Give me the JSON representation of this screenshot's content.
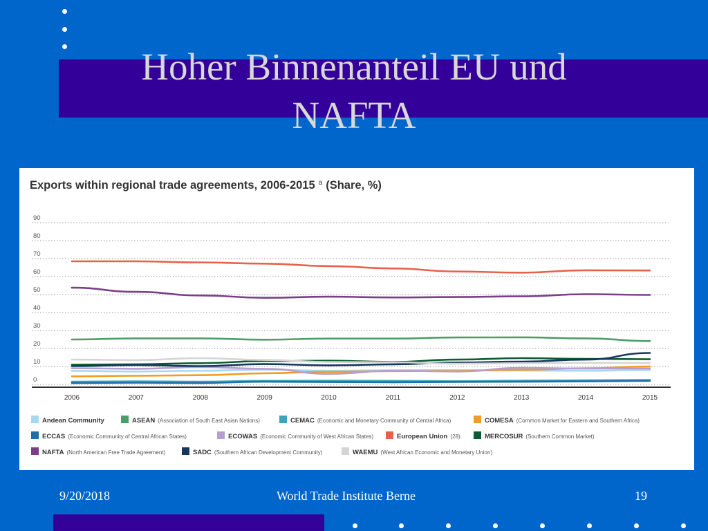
{
  "slide": {
    "title_line1": "Hoher Binnenanteil EU und",
    "title_line2": "NAFTA",
    "footer_date": "9/20/2018",
    "footer_center": "World Trade Institute Berne",
    "footer_page": "19"
  },
  "colors": {
    "background": "#0066CC",
    "band": "#330099",
    "title_text": "#D8D8D8"
  },
  "chart_data": {
    "type": "line",
    "title": "Exports within regional trade agreements, 2006-2015",
    "title_sup": "a",
    "title_suffix": "(Share, %)",
    "ylim": [
      0,
      90
    ],
    "y_ticks": [
      0,
      10,
      20,
      30,
      40,
      50,
      60,
      70,
      80,
      90
    ],
    "grid": true,
    "legend_position": "bottom",
    "categories": [
      "2006",
      "2007",
      "2008",
      "2009",
      "2010",
      "2011",
      "2012",
      "2013",
      "2014",
      "2015"
    ],
    "series": [
      {
        "name": "Andean Community",
        "desc": "",
        "color": "#A8D8F0",
        "values": [
          7.5,
          7.2,
          7.6,
          8.2,
          7.6,
          7.9,
          8.0,
          7.7,
          7.6,
          8.0
        ]
      },
      {
        "name": "ASEAN",
        "desc": "(Association of South East Asian Nations)",
        "color": "#4C9E68",
        "values": [
          25.0,
          25.6,
          25.6,
          24.9,
          25.5,
          25.5,
          26.1,
          26.2,
          25.6,
          24.1
        ]
      },
      {
        "name": "CEMAC",
        "desc": "(Economic and Monetary Community of Central Africa)",
        "color": "#3AA6B9",
        "values": [
          1.5,
          1.7,
          1.5,
          2.0,
          2.1,
          2.0,
          1.8,
          2.1,
          2.3,
          2.5
        ]
      },
      {
        "name": "COMESA",
        "desc": "(Common Market for Eastern and Southern Africa)",
        "color": "#F39C1F",
        "values": [
          4.5,
          4.8,
          5.1,
          6.2,
          7.0,
          7.4,
          7.5,
          8.2,
          9.0,
          10.0
        ]
      },
      {
        "name": "ECCAS",
        "desc": "(Economic Community of Central African States)",
        "color": "#1F6FA8",
        "values": [
          0.8,
          1.0,
          0.8,
          1.5,
          1.3,
          1.2,
          1.4,
          1.5,
          1.7,
          2.0
        ]
      },
      {
        "name": "ECOWAS",
        "desc": "(Economic Community of West African States)",
        "color": "#B79ED0",
        "values": [
          9.0,
          8.7,
          9.6,
          8.7,
          5.9,
          7.6,
          7.2,
          9.2,
          8.8,
          8.9
        ]
      },
      {
        "name": "European Union",
        "desc": "(28)",
        "color": "#E8624A",
        "values": [
          68.5,
          68.5,
          67.9,
          67.2,
          65.8,
          64.5,
          62.8,
          62.2,
          63.5,
          63.4
        ]
      },
      {
        "name": "MERCOSUR",
        "desc": "(Southern Common Market)",
        "color": "#0E5C33",
        "values": [
          11.0,
          11.2,
          11.8,
          13.0,
          13.2,
          12.5,
          13.8,
          14.6,
          14.2,
          14.0
        ]
      },
      {
        "name": "NAFTA",
        "desc": "(North American Free Trade Agreement)",
        "color": "#7B3F88",
        "values": [
          53.8,
          51.5,
          49.5,
          48.2,
          48.8,
          48.4,
          48.6,
          49.0,
          50.2,
          49.8
        ]
      },
      {
        "name": "SADC",
        "desc": "(Southern African Development Community)",
        "color": "#15375E",
        "values": [
          10.2,
          10.8,
          10.2,
          11.3,
          10.6,
          11.2,
          12.2,
          12.7,
          13.8,
          17.5
        ]
      },
      {
        "name": "WAEMU",
        "desc": "(West African Economic and Monetary Union)",
        "color": "#D5D5D5",
        "values": [
          13.8,
          13.5,
          14.6,
          13.6,
          12.5,
          12.3,
          11.5,
          11.8,
          12.0,
          11.9
        ]
      }
    ]
  }
}
